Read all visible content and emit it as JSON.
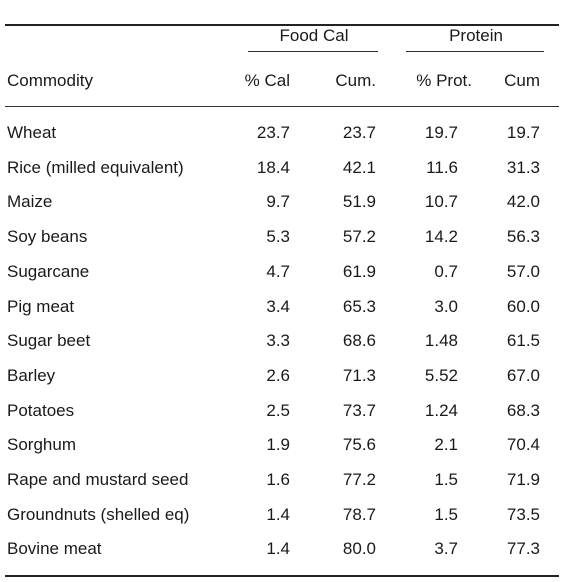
{
  "table": {
    "group_headers": {
      "food_cal": "Food Cal",
      "protein": "Protein"
    },
    "column_headers": {
      "commodity": "Commodity",
      "pct_cal": "% Cal",
      "cum_cal": "Cum.",
      "pct_prot": "% Prot.",
      "cum_prot": "Cum"
    },
    "rows": [
      {
        "commodity": "Wheat",
        "pct_cal": "23.7",
        "cum_cal": "23.7",
        "pct_prot": "19.7",
        "cum_prot": "19.7"
      },
      {
        "commodity": "Rice (milled equivalent)",
        "pct_cal": "18.4",
        "cum_cal": "42.1",
        "pct_prot": "11.6",
        "cum_prot": "31.3"
      },
      {
        "commodity": "Maize",
        "pct_cal": "9.7",
        "cum_cal": "51.9",
        "pct_prot": "10.7",
        "cum_prot": "42.0"
      },
      {
        "commodity": "Soy beans",
        "pct_cal": "5.3",
        "cum_cal": "57.2",
        "pct_prot": "14.2",
        "cum_prot": "56.3"
      },
      {
        "commodity": "Sugarcane",
        "pct_cal": "4.7",
        "cum_cal": "61.9",
        "pct_prot": "0.7",
        "cum_prot": "57.0"
      },
      {
        "commodity": "Pig meat",
        "pct_cal": "3.4",
        "cum_cal": "65.3",
        "pct_prot": "3.0",
        "cum_prot": "60.0"
      },
      {
        "commodity": "Sugar beet",
        "pct_cal": "3.3",
        "cum_cal": "68.6",
        "pct_prot": "1.48",
        "cum_prot": "61.5"
      },
      {
        "commodity": "Barley",
        "pct_cal": "2.6",
        "cum_cal": "71.3",
        "pct_prot": "5.52",
        "cum_prot": "67.0"
      },
      {
        "commodity": "Potatoes",
        "pct_cal": "2.5",
        "cum_cal": "73.7",
        "pct_prot": "1.24",
        "cum_prot": "68.3"
      },
      {
        "commodity": "Sorghum",
        "pct_cal": "1.9",
        "cum_cal": "75.6",
        "pct_prot": "2.1",
        "cum_prot": "70.4"
      },
      {
        "commodity": "Rape and mustard seed",
        "pct_cal": "1.6",
        "cum_cal": "77.2",
        "pct_prot": "1.5",
        "cum_prot": "71.9"
      },
      {
        "commodity": "Groundnuts (shelled eq)",
        "pct_cal": "1.4",
        "cum_cal": "78.7",
        "pct_prot": "1.5",
        "cum_prot": "73.5"
      },
      {
        "commodity": "Bovine meat",
        "pct_cal": "1.4",
        "cum_cal": "80.0",
        "pct_prot": "3.7",
        "cum_prot": "77.3"
      }
    ]
  }
}
